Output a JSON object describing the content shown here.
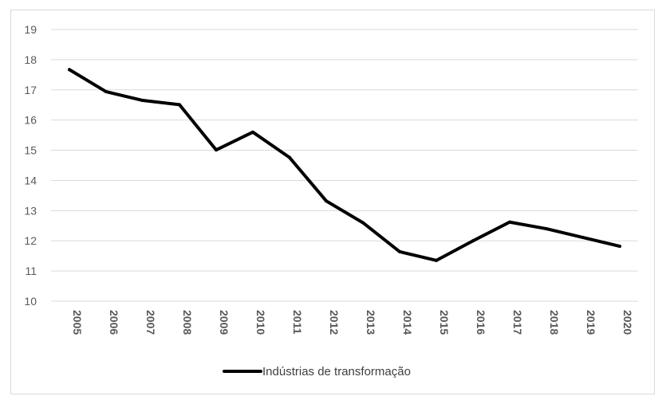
{
  "chart_data": {
    "type": "line",
    "title": "",
    "xlabel": "",
    "ylabel": "",
    "categories": [
      "2005",
      "2006",
      "2007",
      "2008",
      "2009",
      "2010",
      "2011",
      "2012",
      "2013",
      "2014",
      "2015",
      "2016",
      "2017",
      "2018",
      "2019",
      "2020"
    ],
    "series": [
      {
        "name": "Indústrias de transformação",
        "color": "#000000",
        "values": [
          17.67,
          16.94,
          16.65,
          16.51,
          15.01,
          15.6,
          14.76,
          13.32,
          12.6,
          11.64,
          11.35,
          12.0,
          12.62,
          12.4,
          12.11,
          11.82
        ]
      }
    ],
    "ylim": [
      10,
      19
    ],
    "yticks": [
      10,
      11,
      12,
      13,
      14,
      15,
      16,
      17,
      18,
      19
    ],
    "grid": true,
    "legend_position": "bottom"
  }
}
